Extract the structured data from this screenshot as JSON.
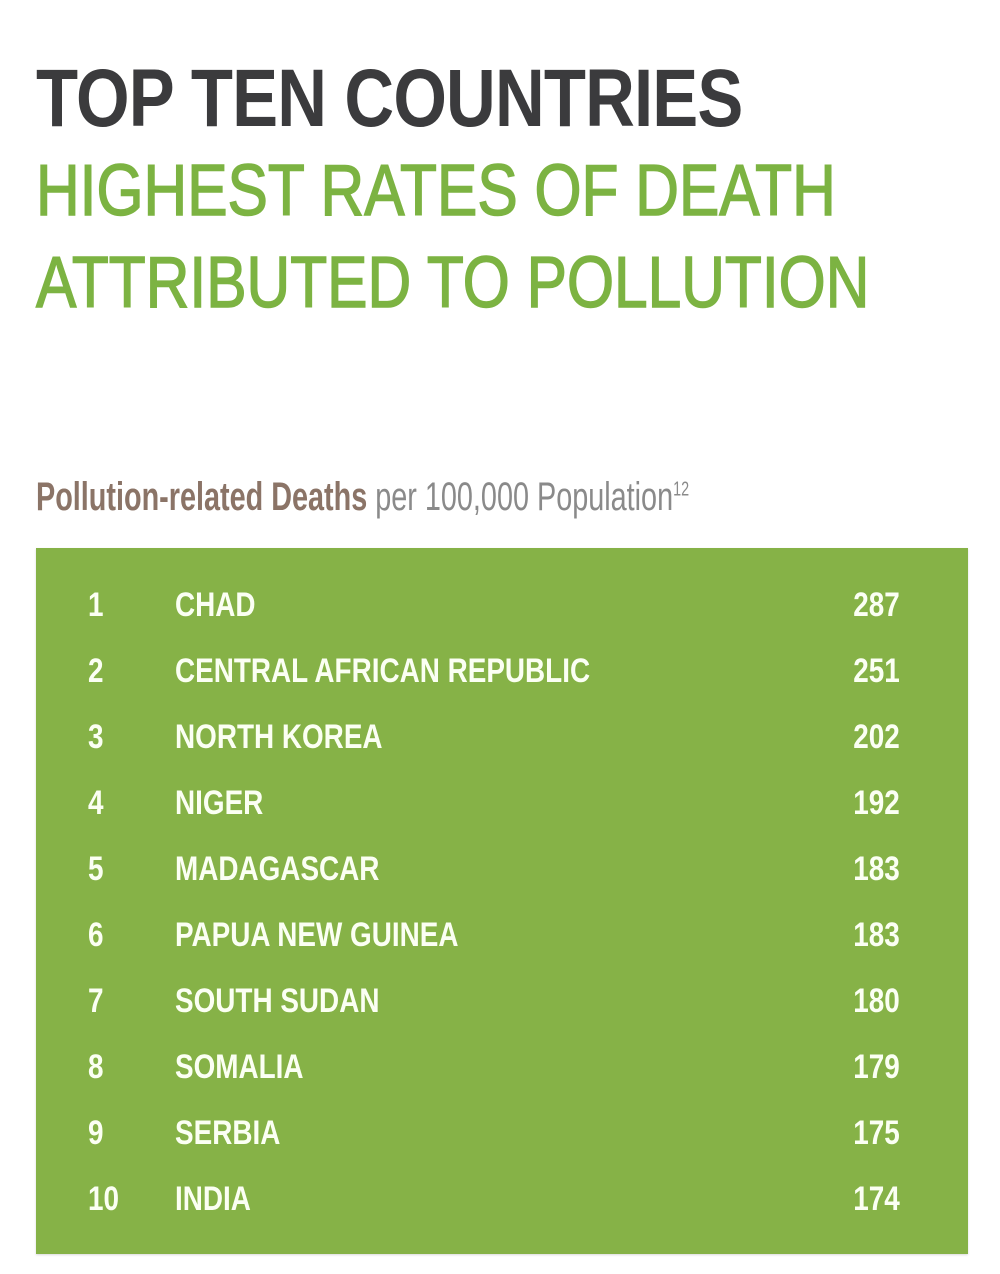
{
  "title": "TOP TEN COUNTRIES",
  "subtitle_line1": "HIGHEST RATES OF DEATH",
  "subtitle_line2": "ATTRIBUTED TO POLLUTION",
  "caption": {
    "bold": "Pollution-related Deaths",
    "normal": " per 100,000 Population",
    "footnote": "12"
  },
  "colors": {
    "title": "#3b3b3d",
    "accent_green": "#7cb342",
    "table_bg": "#86b247",
    "caption_brown": "#8b7467"
  },
  "rows": [
    {
      "rank": "1",
      "country": "CHAD",
      "value": "287"
    },
    {
      "rank": "2",
      "country": "CENTRAL AFRICAN REPUBLIC",
      "value": "251"
    },
    {
      "rank": "3",
      "country": "NORTH KOREA",
      "value": "202"
    },
    {
      "rank": "4",
      "country": "NIGER",
      "value": "192"
    },
    {
      "rank": "5",
      "country": "MADAGASCAR",
      "value": "183"
    },
    {
      "rank": "6",
      "country": "PAPUA NEW GUINEA",
      "value": "183"
    },
    {
      "rank": "7",
      "country": "SOUTH SUDAN",
      "value": "180"
    },
    {
      "rank": "8",
      "country": "SOMALIA",
      "value": "179"
    },
    {
      "rank": "9",
      "country": "SERBIA",
      "value": "175"
    },
    {
      "rank": "10",
      "country": "INDIA",
      "value": "174"
    }
  ]
}
